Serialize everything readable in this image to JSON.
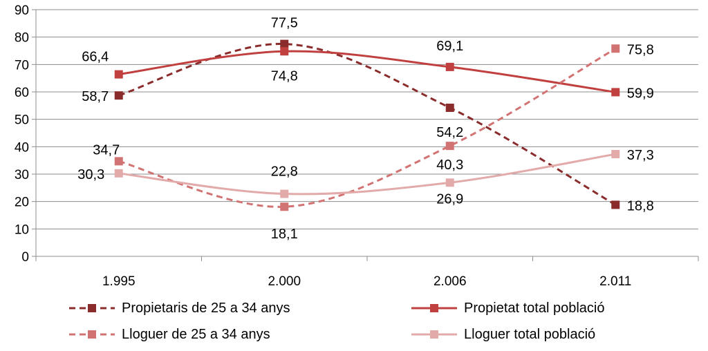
{
  "chart_data": {
    "type": "line",
    "categories": [
      "1.995",
      "2.000",
      "2.006",
      "2.011"
    ],
    "ylim": [
      0,
      90
    ],
    "yticks": [
      "0",
      "10",
      "20",
      "30",
      "40",
      "50",
      "60",
      "70",
      "80",
      "90"
    ],
    "grid": true,
    "legend_position": "bottom",
    "series": [
      {
        "name": "Propietaris de 25 a 34 anys",
        "values": [
          58.7,
          77.5,
          54.2,
          18.8
        ],
        "labels": [
          "58,7",
          "77,5",
          "54,2",
          "18,8"
        ],
        "color": "#8B2C2C",
        "dashed": true
      },
      {
        "name": "Propietat total població",
        "values": [
          66.4,
          74.8,
          69.1,
          59.9
        ],
        "labels": [
          "66,4",
          "74,8",
          "69,1",
          "59,9"
        ],
        "color": "#C0403F",
        "dashed": false
      },
      {
        "name": "Lloguer de 25 a 34 anys",
        "values": [
          34.7,
          18.1,
          40.3,
          75.8
        ],
        "labels": [
          "34,7",
          "18,1",
          "40,3",
          "75,8"
        ],
        "color": "#D27373",
        "dashed": true
      },
      {
        "name": "Lloguer total població",
        "values": [
          30.3,
          22.8,
          26.9,
          37.3
        ],
        "labels": [
          "30,3",
          "22,8",
          "26,9",
          "37,3"
        ],
        "color": "#E3AAAA",
        "dashed": false
      }
    ]
  }
}
